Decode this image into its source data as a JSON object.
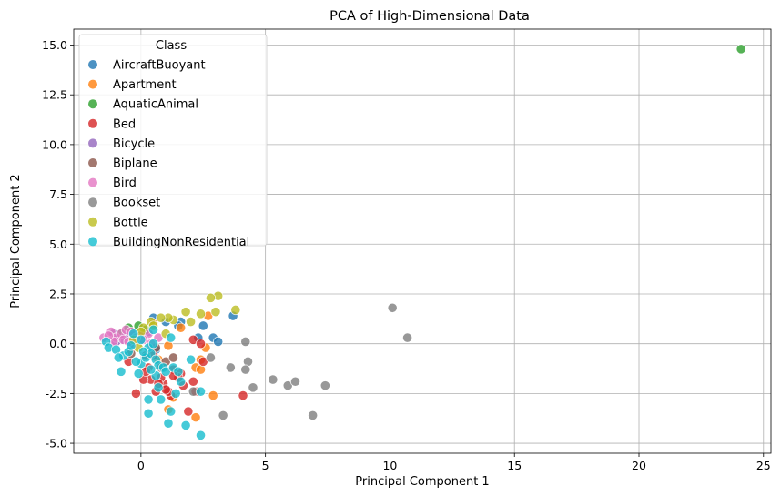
{
  "chart_data": {
    "type": "scatter",
    "title": "PCA of High-Dimensional Data",
    "xlabel": "Principal Component 1",
    "ylabel": "Principal Component 2",
    "xlim": [
      -2.7,
      25.3
    ],
    "ylim": [
      -5.5,
      15.8
    ],
    "xticks": [
      0,
      5,
      10,
      15,
      20,
      25
    ],
    "yticks": [
      -5.0,
      -2.5,
      0.0,
      2.5,
      5.0,
      7.5,
      10.0,
      12.5,
      15.0
    ],
    "grid": true,
    "legend": {
      "title": "Class",
      "placement": "upper-left"
    },
    "series": [
      {
        "name": "AircraftBuoyant",
        "color": "#1f77b4",
        "points": [
          [
            0.5,
            1.3
          ],
          [
            2.5,
            0.9
          ],
          [
            2.9,
            0.3
          ],
          [
            3.7,
            1.4
          ],
          [
            3.1,
            0.1
          ],
          [
            1.0,
            1.1
          ],
          [
            0.3,
            0.6
          ],
          [
            1.6,
            1.1
          ],
          [
            0.6,
            -0.3
          ],
          [
            -0.3,
            0.4
          ],
          [
            1.5,
            0.9
          ],
          [
            0.0,
            0.2
          ],
          [
            2.3,
            0.3
          ]
        ]
      },
      {
        "name": "Apartment",
        "color": "#ff7f0e",
        "points": [
          [
            2.2,
            -1.2
          ],
          [
            2.4,
            -0.8
          ],
          [
            2.9,
            -2.6
          ],
          [
            2.2,
            -3.7
          ],
          [
            1.6,
            0.8
          ],
          [
            2.6,
            -0.2
          ],
          [
            1.1,
            -0.1
          ],
          [
            0.7,
            -0.8
          ],
          [
            1.1,
            -3.3
          ],
          [
            2.7,
            1.4
          ],
          [
            0.5,
            1.0
          ],
          [
            1.3,
            -2.7
          ],
          [
            2.4,
            -1.3
          ]
        ]
      },
      {
        "name": "AquaticAnimal",
        "color": "#2ca02c",
        "points": [
          [
            24.1,
            14.8
          ],
          [
            -0.5,
            0.8
          ],
          [
            -0.1,
            0.9
          ],
          [
            0.2,
            0.7
          ],
          [
            -0.8,
            0.5
          ],
          [
            0.0,
            0.4
          ]
        ]
      },
      {
        "name": "Bed",
        "color": "#d62728",
        "points": [
          [
            0.4,
            -1.8
          ],
          [
            0.9,
            -2.0
          ],
          [
            1.3,
            -1.3
          ],
          [
            1.6,
            -1.5
          ],
          [
            2.1,
            -1.9
          ],
          [
            2.5,
            -0.9
          ],
          [
            -0.2,
            -2.5
          ],
          [
            0.6,
            -2.4
          ],
          [
            0.3,
            -1.2
          ],
          [
            0.8,
            -1.7
          ],
          [
            1.9,
            -3.4
          ],
          [
            4.1,
            -2.6
          ],
          [
            2.2,
            -2.4
          ],
          [
            1.2,
            -2.6
          ],
          [
            0.1,
            -1.8
          ],
          [
            1.7,
            -2.1
          ],
          [
            1.1,
            -2.4
          ],
          [
            2.1,
            0.2
          ],
          [
            -0.5,
            -0.9
          ],
          [
            0.5,
            -0.6
          ],
          [
            1.5,
            -1.7
          ],
          [
            0.7,
            -2.0
          ],
          [
            1.0,
            -2.3
          ],
          [
            2.4,
            0.0
          ],
          [
            0.2,
            -1.4
          ],
          [
            1.3,
            -1.6
          ]
        ]
      },
      {
        "name": "Bicycle",
        "color": "#9467bd",
        "points": [
          [
            -1.1,
            0.5
          ],
          [
            -0.6,
            0.4
          ],
          [
            -0.8,
            0.2
          ],
          [
            -0.3,
            0.0
          ],
          [
            -1.0,
            0.1
          ]
        ]
      },
      {
        "name": "Biplane",
        "color": "#8c564b",
        "points": [
          [
            0.2,
            -0.6
          ],
          [
            0.8,
            -1.2
          ],
          [
            1.0,
            -0.9
          ],
          [
            0.6,
            -0.2
          ],
          [
            -0.4,
            -0.5
          ],
          [
            1.3,
            -0.7
          ]
        ]
      },
      {
        "name": "Bird",
        "color": "#e377c2",
        "points": [
          [
            -1.5,
            0.3
          ],
          [
            -1.2,
            0.6
          ],
          [
            -1.0,
            0.3
          ],
          [
            -0.8,
            0.5
          ],
          [
            -0.6,
            0.7
          ],
          [
            -0.3,
            0.4
          ],
          [
            0.0,
            0.4
          ],
          [
            0.3,
            0.5
          ],
          [
            0.7,
            0.3
          ],
          [
            -1.1,
            0.1
          ],
          [
            -1.3,
            0.4
          ],
          [
            -0.7,
            0.2
          ],
          [
            -0.4,
            0.6
          ],
          [
            0.1,
            0.2
          ],
          [
            0.4,
            0.0
          ],
          [
            -0.2,
            0.3
          ],
          [
            -0.5,
            0.1
          ]
        ]
      },
      {
        "name": "Bookset",
        "color": "#7f7f7f",
        "points": [
          [
            10.1,
            1.8
          ],
          [
            10.7,
            0.3
          ],
          [
            4.2,
            0.1
          ],
          [
            4.3,
            -0.9
          ],
          [
            4.2,
            -1.3
          ],
          [
            3.6,
            -1.2
          ],
          [
            5.3,
            -1.8
          ],
          [
            5.9,
            -2.1
          ],
          [
            6.2,
            -1.9
          ],
          [
            7.4,
            -2.1
          ],
          [
            6.9,
            -3.6
          ],
          [
            4.5,
            -2.2
          ],
          [
            3.3,
            -3.6
          ],
          [
            2.1,
            -2.4
          ],
          [
            2.8,
            -0.7
          ]
        ]
      },
      {
        "name": "Bottle",
        "color": "#bcbd22",
        "points": [
          [
            3.1,
            2.4
          ],
          [
            2.8,
            2.3
          ],
          [
            3.8,
            1.7
          ],
          [
            3.0,
            1.6
          ],
          [
            1.8,
            1.6
          ],
          [
            2.4,
            1.5
          ],
          [
            1.3,
            1.2
          ],
          [
            2.0,
            1.1
          ],
          [
            1.1,
            1.3
          ],
          [
            0.8,
            1.3
          ],
          [
            1.0,
            0.5
          ],
          [
            0.4,
            1.1
          ],
          [
            0.5,
            0.9
          ],
          [
            0.1,
            0.8
          ],
          [
            -0.3,
            0.2
          ],
          [
            0.0,
            0.6
          ],
          [
            -0.1,
            -0.2
          ]
        ]
      },
      {
        "name": "BuildingNonResidential",
        "color": "#17becf",
        "points": [
          [
            -1.4,
            0.1
          ],
          [
            -1.3,
            -0.2
          ],
          [
            -1.0,
            -0.3
          ],
          [
            -0.7,
            -0.6
          ],
          [
            -0.5,
            -0.4
          ],
          [
            -0.3,
            0.5
          ],
          [
            -0.1,
            -1.5
          ],
          [
            0.0,
            -1.0
          ],
          [
            0.2,
            -0.7
          ],
          [
            0.3,
            -0.2
          ],
          [
            0.4,
            -0.5
          ],
          [
            0.5,
            0.0
          ],
          [
            0.6,
            -0.8
          ],
          [
            0.7,
            -1.1
          ],
          [
            0.8,
            -2.8
          ],
          [
            0.9,
            -1.2
          ],
          [
            1.0,
            -1.4
          ],
          [
            1.1,
            -4.0
          ],
          [
            1.2,
            -3.4
          ],
          [
            1.3,
            -1.2
          ],
          [
            1.4,
            -2.5
          ],
          [
            1.8,
            -4.1
          ],
          [
            2.0,
            -0.8
          ],
          [
            2.4,
            -4.6
          ],
          [
            2.4,
            -2.4
          ],
          [
            0.3,
            -2.8
          ],
          [
            0.3,
            -3.5
          ],
          [
            -0.8,
            -1.4
          ],
          [
            0.1,
            -0.4
          ],
          [
            0.5,
            0.7
          ],
          [
            -0.2,
            -0.9
          ],
          [
            1.2,
            0.3
          ],
          [
            0.6,
            -1.6
          ],
          [
            1.6,
            -1.9
          ],
          [
            0.4,
            -1.3
          ],
          [
            -0.4,
            -0.1
          ],
          [
            1.5,
            -1.4
          ],
          [
            0.0,
            0.2
          ],
          [
            -0.9,
            -0.7
          ],
          [
            0.7,
            -2.2
          ]
        ]
      }
    ]
  }
}
